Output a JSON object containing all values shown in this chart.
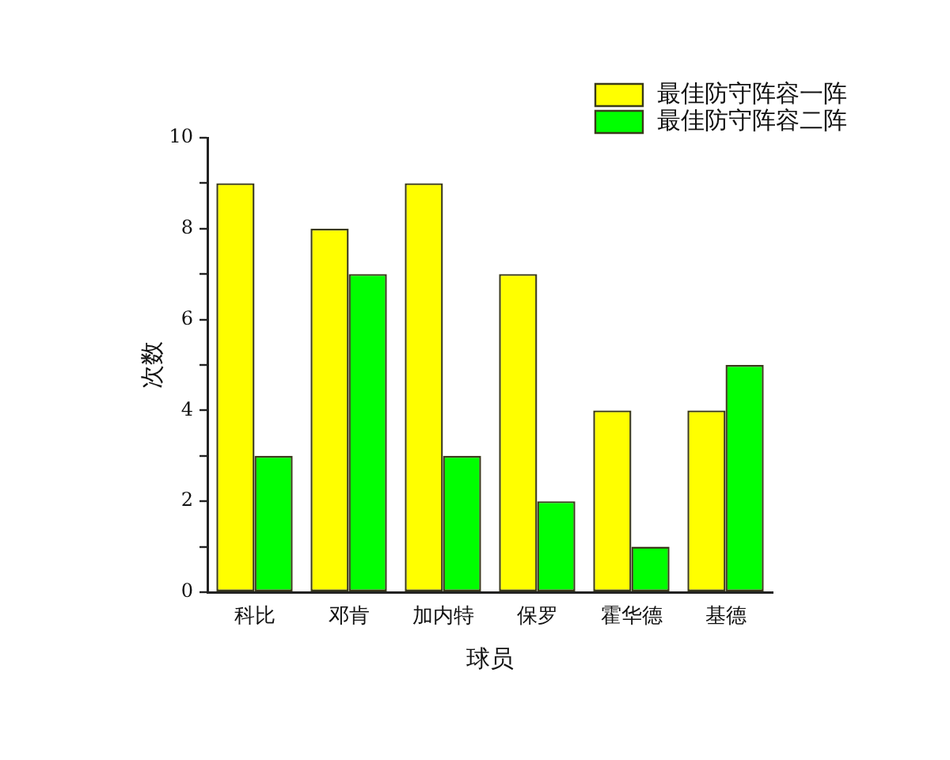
{
  "chart_data": {
    "type": "bar",
    "xlabel": "球员",
    "ylabel": "次数",
    "categories": [
      "科比",
      "邓肯",
      "加内特",
      "保罗",
      "霍华德",
      "基德"
    ],
    "series": [
      {
        "name": "最佳防守阵容一阵",
        "color": "#ffff00",
        "values": [
          9,
          8,
          9,
          7,
          4,
          4
        ]
      },
      {
        "name": "最佳防守阵容二阵",
        "color": "#00ff00",
        "values": [
          3,
          7,
          3,
          2,
          1,
          5
        ]
      }
    ],
    "ylim": [
      0,
      10
    ],
    "yticks": [
      0,
      {
        "value": 1,
        "label": null
      },
      2,
      {
        "value": 3,
        "label": null
      },
      4,
      {
        "value": 5,
        "label": null
      },
      6,
      {
        "value": 7,
        "label": null
      },
      8,
      {
        "value": 9,
        "label": null
      },
      10
    ],
    "grid": false,
    "legend": "top right"
  }
}
